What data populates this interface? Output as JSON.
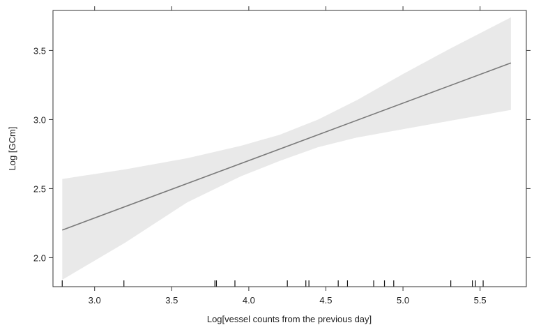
{
  "chart_data": {
    "type": "line",
    "xlabel": "Log[vessel counts from the previous day]",
    "ylabel": "Log [GCm]",
    "xlim": [
      2.73,
      5.8
    ],
    "ylim": [
      1.79,
      3.79
    ],
    "x_ticks": [
      3.0,
      3.5,
      4.0,
      4.5,
      5.0,
      5.5
    ],
    "x_tick_labels": [
      "3.0",
      "3.5",
      "4.0",
      "4.5",
      "5.0",
      "5.5"
    ],
    "y_ticks": [
      2.0,
      2.5,
      3.0,
      3.5
    ],
    "y_tick_labels": [
      "2.0",
      "2.5",
      "3.0",
      "3.5"
    ],
    "grid": false,
    "colors": {
      "fit_line": "#7a7a7a",
      "band": "#e9e9e9",
      "axis": "#333333"
    },
    "fit_line": {
      "x": [
        2.79,
        5.7
      ],
      "y": [
        2.2,
        3.41
      ]
    },
    "confidence_band": {
      "x": [
        2.79,
        3.2,
        3.6,
        3.95,
        4.2,
        4.45,
        4.7,
        5.0,
        5.3,
        5.7
      ],
      "lower": [
        1.84,
        2.11,
        2.4,
        2.59,
        2.7,
        2.8,
        2.87,
        2.93,
        2.99,
        3.07
      ],
      "upper": [
        2.57,
        2.64,
        2.72,
        2.81,
        2.89,
        3.0,
        3.14,
        3.33,
        3.51,
        3.74
      ]
    },
    "rug_x": [
      2.79,
      3.19,
      3.78,
      3.79,
      3.91,
      4.25,
      4.37,
      4.39,
      4.58,
      4.64,
      4.81,
      4.88,
      4.94,
      5.31,
      5.45,
      5.47,
      5.52
    ]
  }
}
